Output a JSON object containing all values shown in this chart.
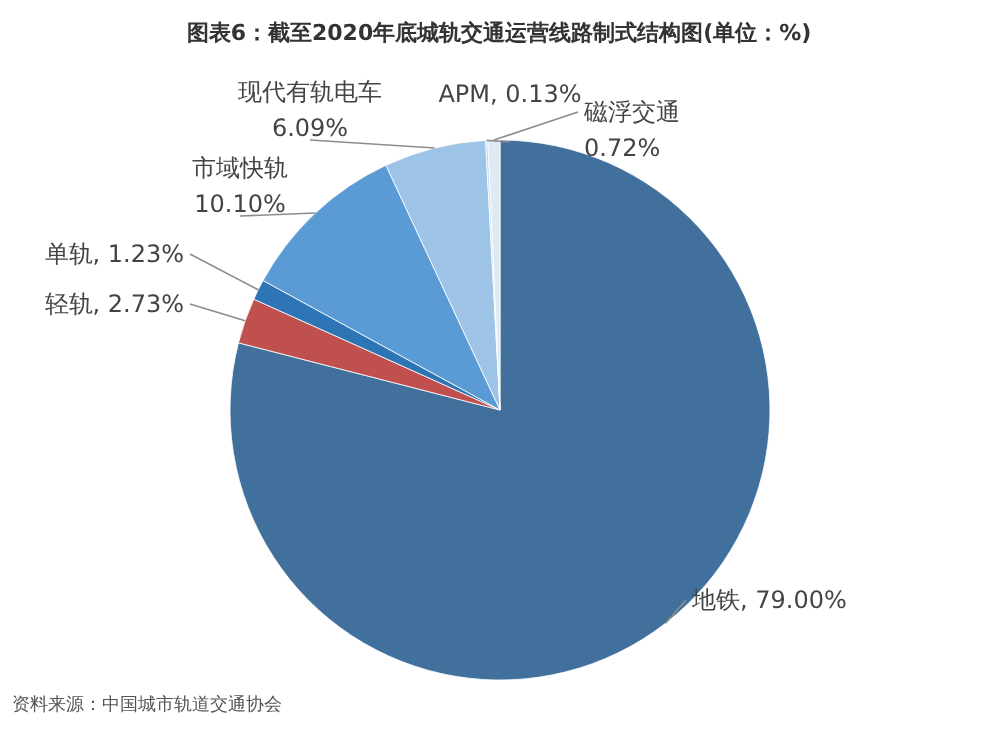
{
  "chart_data": {
    "type": "pie",
    "title": "图表6：截至2020年底城轨交通运营线路制式结构图(单位：%)",
    "categories": [
      "地铁",
      "轻轨",
      "单轨",
      "市域快轨",
      "现代有轨电车",
      "APM",
      "磁浮交通"
    ],
    "values": [
      79.0,
      2.73,
      1.23,
      10.1,
      6.09,
      0.13,
      0.72
    ],
    "value_labels": [
      "79.00%",
      "2.73%",
      "1.23%",
      "10.10%",
      "6.09%",
      "0.13%",
      "0.72%"
    ],
    "colors": [
      "#41709c",
      "#c0504d",
      "#2e75b6",
      "#5b9bd5",
      "#9dc3e6",
      "#bdd7ee",
      "#deebf7"
    ],
    "legend": false,
    "annotations": [
      "资料来源：中国城市轨道交通协会"
    ]
  }
}
